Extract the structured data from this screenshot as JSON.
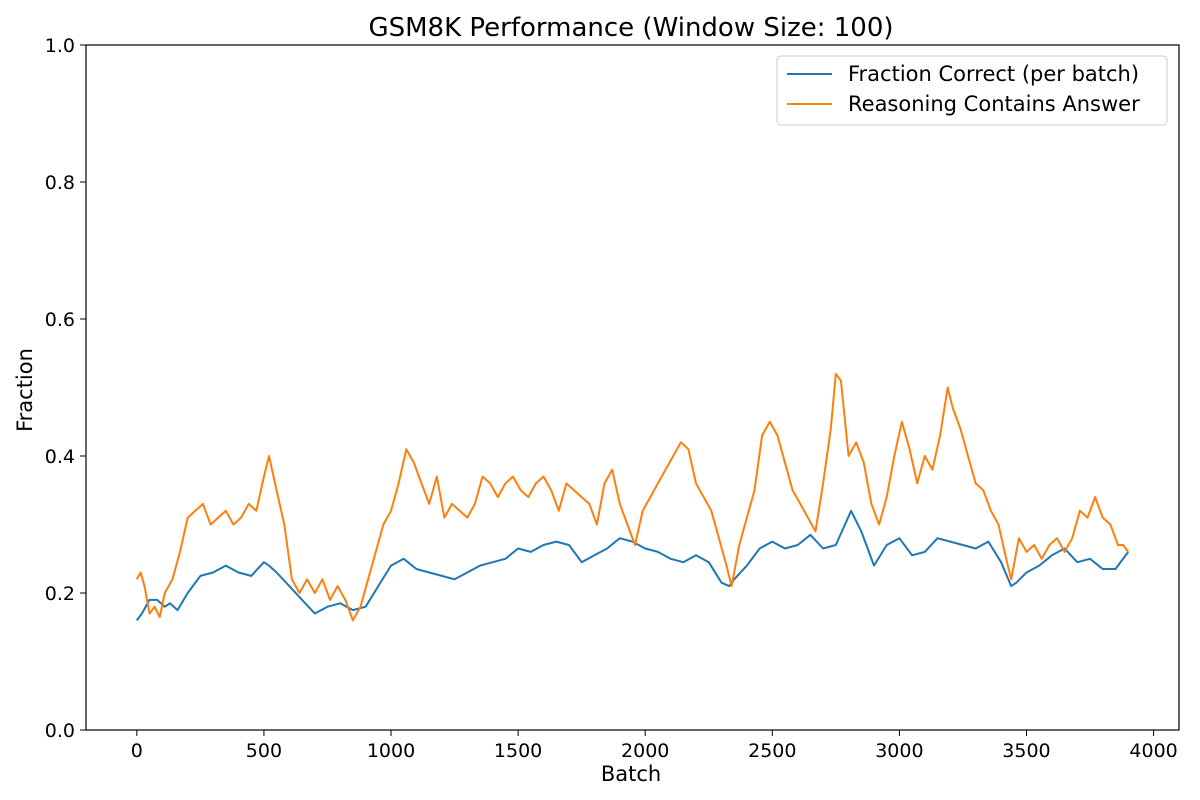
{
  "chart_data": {
    "type": "line",
    "title": "GSM8K Performance (Window Size: 100)",
    "xlabel": "Batch",
    "ylabel": "Fraction",
    "xlim": [
      -200,
      4100
    ],
    "ylim": [
      0,
      1
    ],
    "xticks": [
      0,
      500,
      1000,
      1500,
      2000,
      2500,
      3000,
      3500,
      4000
    ],
    "yticks": [
      0.0,
      0.2,
      0.4,
      0.6,
      0.8,
      1.0
    ],
    "xtick_labels": [
      "0",
      "500",
      "1000",
      "1500",
      "2000",
      "2500",
      "3000",
      "3500",
      "4000"
    ],
    "ytick_labels": [
      "0.0",
      "0.2",
      "0.4",
      "0.6",
      "0.8",
      "1.0"
    ],
    "grid": false,
    "legend_position": "top-right",
    "series": [
      {
        "name": "Fraction Correct (per batch)",
        "color": "#1f77b4",
        "x": [
          0,
          20,
          50,
          80,
          110,
          130,
          160,
          200,
          250,
          300,
          350,
          400,
          450,
          500,
          520,
          550,
          600,
          650,
          700,
          750,
          800,
          850,
          900,
          950,
          1000,
          1050,
          1100,
          1150,
          1200,
          1250,
          1300,
          1350,
          1400,
          1450,
          1500,
          1550,
          1600,
          1650,
          1700,
          1750,
          1800,
          1850,
          1900,
          1950,
          2000,
          2050,
          2100,
          2150,
          2200,
          2250,
          2300,
          2330,
          2350,
          2400,
          2450,
          2500,
          2550,
          2600,
          2650,
          2700,
          2750,
          2780,
          2810,
          2850,
          2900,
          2950,
          3000,
          3050,
          3100,
          3150,
          3200,
          3250,
          3300,
          3350,
          3400,
          3440,
          3460,
          3500,
          3550,
          3600,
          3650,
          3700,
          3750,
          3800,
          3850,
          3900
        ],
        "y": [
          0.16,
          0.17,
          0.19,
          0.19,
          0.18,
          0.185,
          0.175,
          0.2,
          0.225,
          0.23,
          0.24,
          0.23,
          0.225,
          0.245,
          0.24,
          0.23,
          0.21,
          0.19,
          0.17,
          0.18,
          0.185,
          0.175,
          0.18,
          0.21,
          0.24,
          0.25,
          0.235,
          0.23,
          0.225,
          0.22,
          0.23,
          0.24,
          0.245,
          0.25,
          0.265,
          0.26,
          0.27,
          0.275,
          0.27,
          0.245,
          0.255,
          0.265,
          0.28,
          0.275,
          0.265,
          0.26,
          0.25,
          0.245,
          0.255,
          0.245,
          0.215,
          0.21,
          0.22,
          0.24,
          0.265,
          0.275,
          0.265,
          0.27,
          0.285,
          0.265,
          0.27,
          0.295,
          0.32,
          0.29,
          0.24,
          0.27,
          0.28,
          0.255,
          0.26,
          0.28,
          0.275,
          0.27,
          0.265,
          0.275,
          0.245,
          0.21,
          0.215,
          0.23,
          0.24,
          0.255,
          0.265,
          0.245,
          0.25,
          0.235,
          0.235,
          0.26
        ]
      },
      {
        "name": "Reasoning Contains Answer",
        "color": "#ff7f0e",
        "x": [
          0,
          15,
          30,
          50,
          70,
          90,
          110,
          140,
          170,
          200,
          230,
          260,
          290,
          320,
          350,
          380,
          410,
          440,
          470,
          500,
          520,
          550,
          580,
          610,
          640,
          670,
          700,
          730,
          760,
          790,
          820,
          850,
          880,
          910,
          940,
          970,
          1000,
          1030,
          1060,
          1090,
          1120,
          1150,
          1180,
          1210,
          1240,
          1270,
          1300,
          1330,
          1360,
          1390,
          1420,
          1450,
          1480,
          1510,
          1540,
          1570,
          1600,
          1630,
          1660,
          1690,
          1720,
          1750,
          1780,
          1810,
          1840,
          1870,
          1900,
          1930,
          1960,
          1990,
          2020,
          2050,
          2080,
          2110,
          2140,
          2170,
          2200,
          2230,
          2260,
          2290,
          2320,
          2340,
          2370,
          2400,
          2430,
          2460,
          2490,
          2520,
          2550,
          2580,
          2610,
          2640,
          2670,
          2700,
          2730,
          2750,
          2770,
          2800,
          2830,
          2860,
          2890,
          2920,
          2950,
          2980,
          3010,
          3040,
          3070,
          3100,
          3130,
          3160,
          3190,
          3210,
          3240,
          3270,
          3300,
          3330,
          3360,
          3390,
          3420,
          3440,
          3470,
          3500,
          3530,
          3560,
          3590,
          3620,
          3650,
          3680,
          3710,
          3740,
          3770,
          3800,
          3830,
          3860,
          3880,
          3900
        ],
        "y": [
          0.22,
          0.23,
          0.21,
          0.17,
          0.18,
          0.165,
          0.2,
          0.22,
          0.26,
          0.31,
          0.32,
          0.33,
          0.3,
          0.31,
          0.32,
          0.3,
          0.31,
          0.33,
          0.32,
          0.37,
          0.4,
          0.35,
          0.3,
          0.22,
          0.2,
          0.22,
          0.2,
          0.22,
          0.19,
          0.21,
          0.19,
          0.16,
          0.18,
          0.22,
          0.26,
          0.3,
          0.32,
          0.36,
          0.41,
          0.39,
          0.36,
          0.33,
          0.37,
          0.31,
          0.33,
          0.32,
          0.31,
          0.33,
          0.37,
          0.36,
          0.34,
          0.36,
          0.37,
          0.35,
          0.34,
          0.36,
          0.37,
          0.35,
          0.32,
          0.36,
          0.35,
          0.34,
          0.33,
          0.3,
          0.36,
          0.38,
          0.33,
          0.3,
          0.27,
          0.32,
          0.34,
          0.36,
          0.38,
          0.4,
          0.42,
          0.41,
          0.36,
          0.34,
          0.32,
          0.28,
          0.24,
          0.21,
          0.27,
          0.31,
          0.35,
          0.43,
          0.45,
          0.43,
          0.39,
          0.35,
          0.33,
          0.31,
          0.29,
          0.36,
          0.44,
          0.52,
          0.51,
          0.4,
          0.42,
          0.39,
          0.33,
          0.3,
          0.34,
          0.4,
          0.45,
          0.41,
          0.36,
          0.4,
          0.38,
          0.43,
          0.5,
          0.47,
          0.44,
          0.4,
          0.36,
          0.35,
          0.32,
          0.3,
          0.25,
          0.22,
          0.28,
          0.26,
          0.27,
          0.25,
          0.27,
          0.28,
          0.26,
          0.28,
          0.32,
          0.31,
          0.34,
          0.31,
          0.3,
          0.27,
          0.27,
          0.26
        ]
      }
    ]
  }
}
